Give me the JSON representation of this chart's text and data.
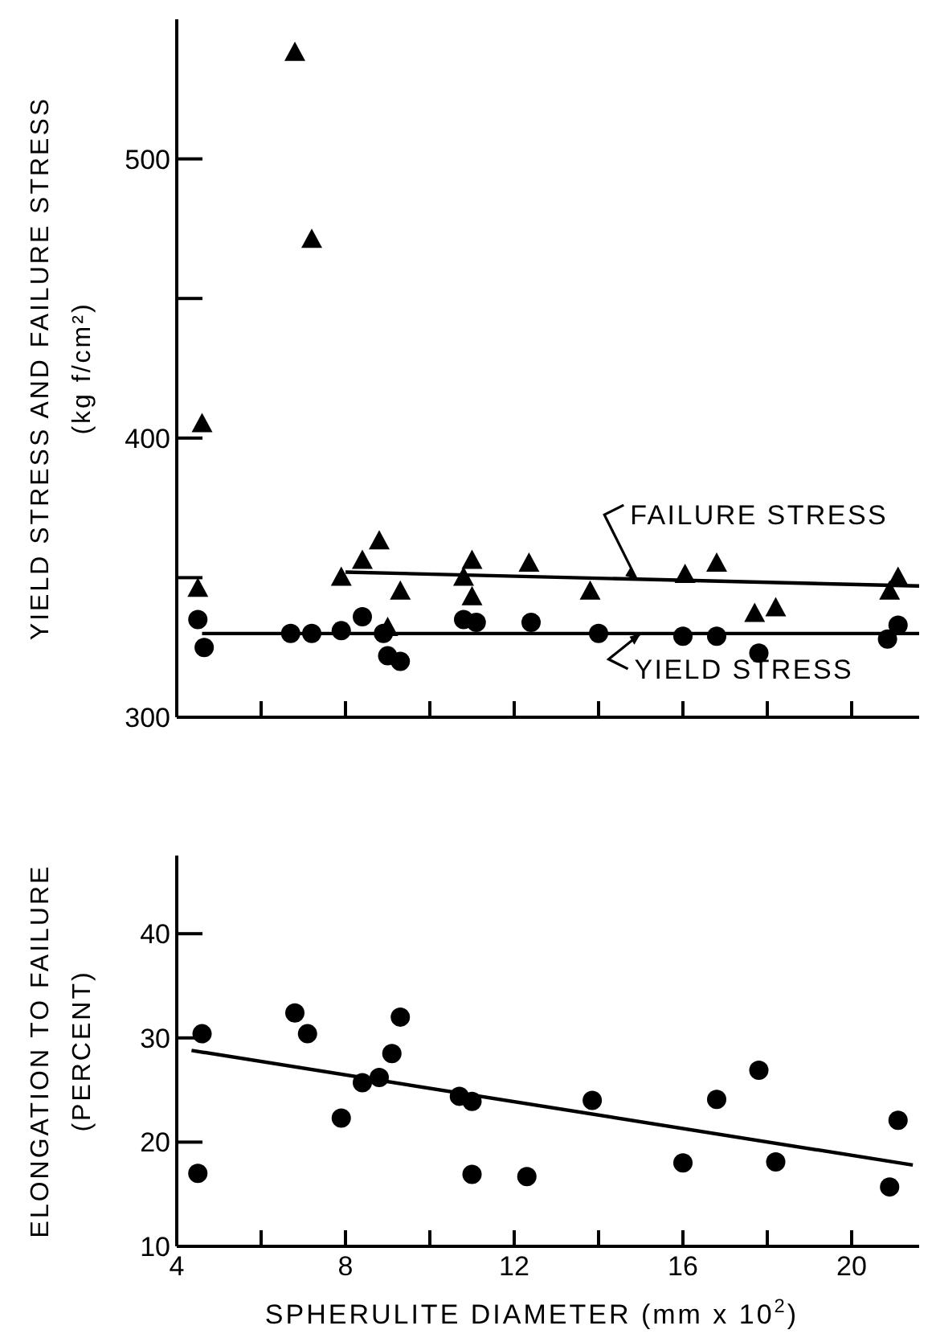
{
  "chart_data": [
    {
      "type": "scatter",
      "ylabel": "YIELD STRESS AND FAILURE STRESS\n(kg f/cm²)",
      "xlim": [
        4,
        21.6
      ],
      "xticks": [
        4,
        {
          "value": 6,
          "label": null
        },
        {
          "value": 8,
          "label": null
        },
        {
          "value": 10,
          "label": null
        },
        {
          "value": 12,
          "label": null
        },
        {
          "value": 14,
          "label": null
        },
        {
          "value": 16,
          "label": null
        },
        {
          "value": 18,
          "label": null
        },
        {
          "value": 20,
          "label": null
        }
      ],
      "ylim": [
        300,
        550
      ],
      "yticks": [
        300,
        {
          "value": 350,
          "label": null
        },
        400,
        {
          "value": 450,
          "label": null
        },
        500
      ],
      "tick_labels": "y",
      "grid": false,
      "legend": false,
      "series": [
        {
          "type": "scatter",
          "marker": "circle",
          "color": "#000000",
          "x": [
            4.5,
            4.65,
            6.7,
            7.2,
            7.9,
            8.4,
            8.9,
            9.0,
            9.3,
            10.8,
            11.1,
            12.4,
            14.0,
            16.0,
            16.8,
            17.8,
            20.85,
            21.1
          ],
          "values": [
            335,
            325,
            330,
            330,
            331,
            336,
            330,
            322,
            320,
            335,
            334,
            334,
            330,
            329,
            329,
            323,
            328,
            333
          ]
        },
        {
          "type": "scatter",
          "marker": "triangle",
          "color": "#000000",
          "x": [
            4.5,
            4.6,
            6.8,
            7.2,
            7.9,
            8.4,
            8.8,
            9.3,
            9.0,
            10.8,
            11.0,
            11.0,
            12.35,
            13.8,
            16.05,
            16.8,
            17.7,
            18.2,
            20.9,
            21.1
          ],
          "values": [
            346,
            405,
            538,
            471,
            350,
            356,
            363,
            345,
            332,
            350,
            356,
            343,
            355,
            345,
            351,
            355,
            337,
            339,
            345,
            350
          ]
        },
        {
          "type": "line",
          "marker": "none",
          "color": "#000000",
          "x": [
            8,
            21.6
          ],
          "values": [
            352,
            347
          ]
        },
        {
          "type": "line",
          "marker": "none",
          "color": "#000000",
          "x": [
            4.6,
            21.6
          ],
          "values": [
            330,
            330
          ]
        }
      ],
      "annotations": [
        {
          "text": "FAILURE STRESS",
          "x": 14.9,
          "y": 349.5
        },
        {
          "text": "YIELD STRESS",
          "x": 15.0,
          "y": 330
        }
      ]
    },
    {
      "type": "scatter",
      "xlabel": "SPHERULITE DIAMETER (mm x 10$^{2}$)",
      "ylabel": "ELONGATION TO FAILURE\n(PERCENT)",
      "xlim": [
        4,
        21.6
      ],
      "xticks": [
        4,
        {
          "value": 6,
          "label": null
        },
        8,
        {
          "value": 10,
          "label": null
        },
        12,
        {
          "value": 14,
          "label": null
        },
        16,
        {
          "value": 18,
          "label": null
        },
        20
      ],
      "ylim": [
        10,
        47.5
      ],
      "yticks": [
        10,
        20,
        30,
        40
      ],
      "grid": false,
      "legend": false,
      "series": [
        {
          "type": "scatter",
          "marker": "circle",
          "color": "#000000",
          "x": [
            4.6,
            4.5,
            6.8,
            7.1,
            7.9,
            8.4,
            8.8,
            9.1,
            9.3,
            10.7,
            11.0,
            11.0,
            12.3,
            13.85,
            16.0,
            16.8,
            17.8,
            18.2,
            20.9,
            21.1
          ],
          "values": [
            30.4,
            17.0,
            32.4,
            30.4,
            22.3,
            25.7,
            26.2,
            28.5,
            32.0,
            24.4,
            23.9,
            16.9,
            16.7,
            24.0,
            18.0,
            24.1,
            26.9,
            18.1,
            15.7,
            22.1
          ]
        },
        {
          "type": "line",
          "marker": "none",
          "color": "#000000",
          "x": [
            4.35,
            21.45
          ],
          "values": [
            28.8,
            17.8
          ]
        }
      ]
    }
  ]
}
